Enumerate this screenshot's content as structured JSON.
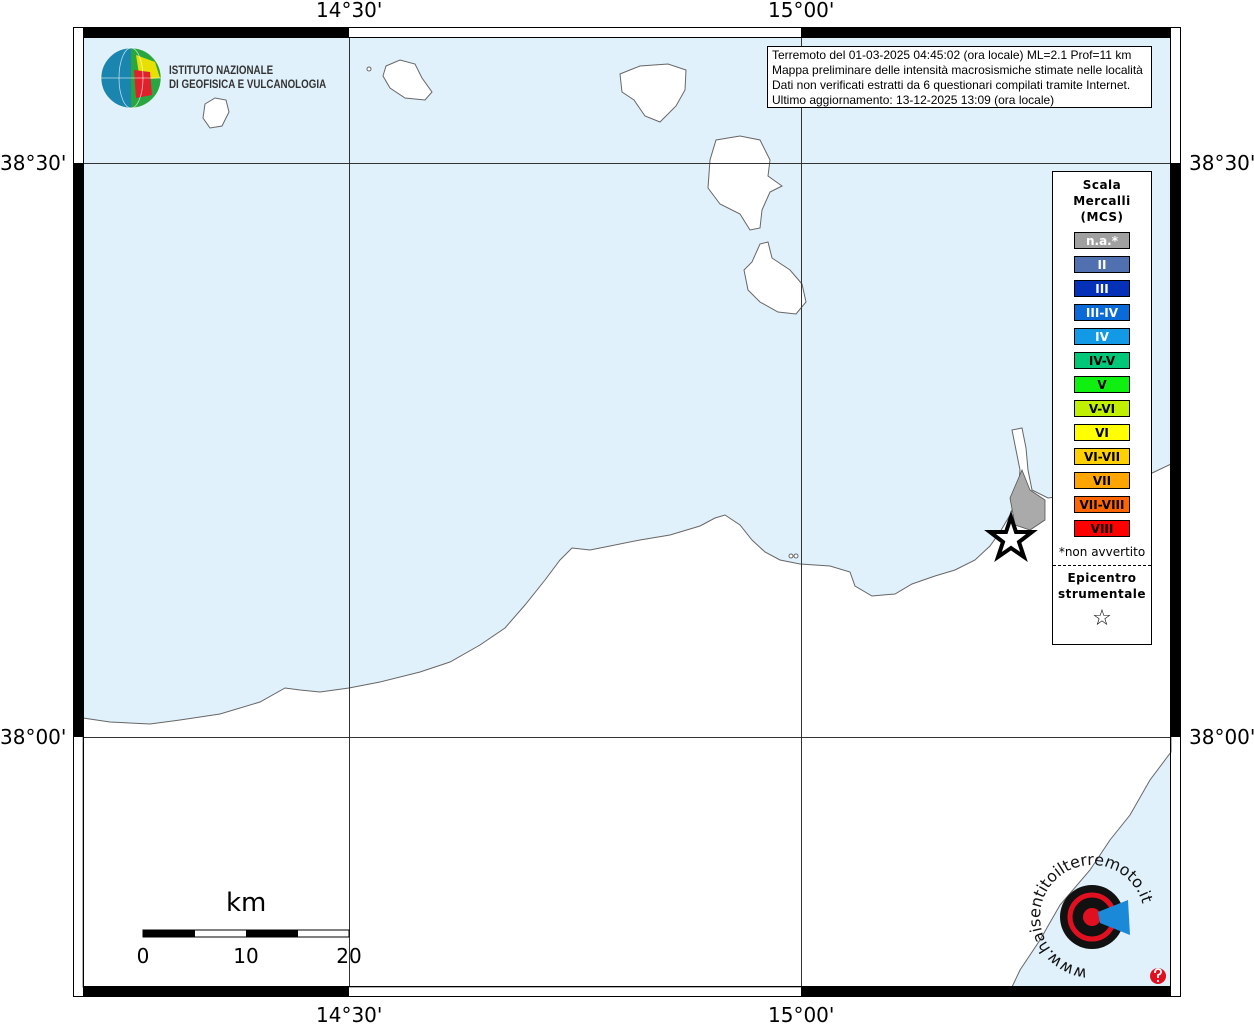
{
  "map": {
    "sea_color": "#e0f1fc",
    "land_color": "#ffffff",
    "longitude_labels": [
      "14°30'",
      "15°00'"
    ],
    "latitude_labels": [
      "38°30'",
      "38°00'"
    ]
  },
  "info_box": {
    "lines": [
      "Terremoto del 01-03-2025 04:45:02 (ora locale) ML=2.1 Prof=11 km",
      "Mappa preliminare delle intensità macrosismiche stimate nelle località",
      "Dati non verificati estratti da 6 questionari compilati tramite Internet.",
      "Ultimo aggiornamento: 13-12-2025 13:09 (ora locale)"
    ]
  },
  "legend": {
    "title_lines": [
      "Scala",
      "Mercalli",
      "(MCS)"
    ],
    "items": [
      {
        "label": "n.a.*",
        "color": "#a0a0a0",
        "text_color": "#ffffff"
      },
      {
        "label": "II",
        "color": "#5070b0",
        "text_color": "#ffffff"
      },
      {
        "label": "III",
        "color": "#0530b8",
        "text_color": "#ffffff"
      },
      {
        "label": "III-IV",
        "color": "#0a6ad8",
        "text_color": "#ffffff"
      },
      {
        "label": "IV",
        "color": "#139ae6",
        "text_color": "#ffffff"
      },
      {
        "label": "IV-V",
        "color": "#00c878",
        "text_color": "#000000"
      },
      {
        "label": "V",
        "color": "#10f010",
        "text_color": "#000000"
      },
      {
        "label": "V-VI",
        "color": "#c0f000",
        "text_color": "#000000"
      },
      {
        "label": "VI",
        "color": "#ffff00",
        "text_color": "#000000"
      },
      {
        "label": "VI-VII",
        "color": "#ffd000",
        "text_color": "#000000"
      },
      {
        "label": "VII",
        "color": "#ffa500",
        "text_color": "#000000"
      },
      {
        "label": "VII-VIII",
        "color": "#ff6600",
        "text_color": "#000000"
      },
      {
        "label": "VIII",
        "color": "#ff0000",
        "text_color": "#000000"
      }
    ],
    "note": "*non avvertito",
    "epicenter_lines": [
      "Epicentro",
      "strumentale"
    ],
    "epicenter_symbol": "☆"
  },
  "scale_bar": {
    "unit": "km",
    "ticks": [
      "0",
      "10",
      "20"
    ]
  },
  "logos": {
    "ingv": [
      "ISTITUTO NAZIONALE",
      "DI GEOFISICA E VULCANOLOGIA"
    ],
    "hsit": "www.haisentitoilterremoto.it"
  }
}
